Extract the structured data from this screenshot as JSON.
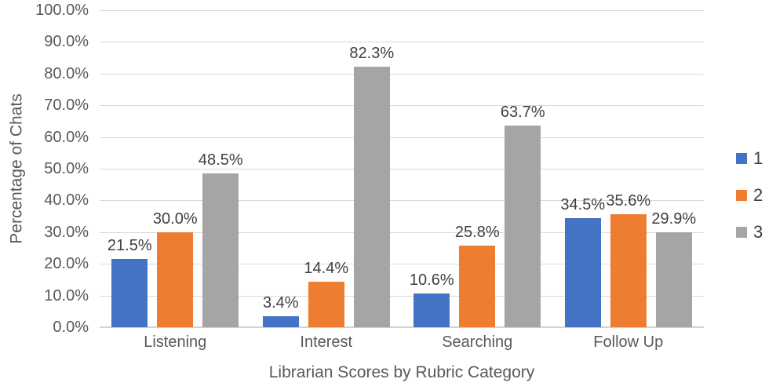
{
  "chart_data": {
    "type": "bar",
    "title": "",
    "xlabel": "Librarian Scores by Rubric Category",
    "ylabel": "Percentage of Chats",
    "categories": [
      "Listening",
      "Interest",
      "Searching",
      "Follow Up"
    ],
    "series": [
      {
        "name": "1",
        "color": "#4472c4",
        "values": [
          21.5,
          3.4,
          10.6,
          34.5
        ],
        "data_labels": [
          "21.5%",
          "3.4%",
          "10.6%",
          "34.5%"
        ]
      },
      {
        "name": "2",
        "color": "#ed7d31",
        "values": [
          30.0,
          14.4,
          25.8,
          35.6
        ],
        "data_labels": [
          "30.0%",
          "14.4%",
          "25.8%",
          "35.6%"
        ]
      },
      {
        "name": "3",
        "color": "#a5a5a5",
        "values": [
          48.5,
          82.3,
          63.7,
          29.9
        ],
        "data_labels": [
          "48.5%",
          "82.3%",
          "63.7%",
          "29.9%"
        ]
      }
    ],
    "ylim": [
      0,
      100
    ],
    "yticks": [
      {
        "value": 0,
        "label": "0.0%"
      },
      {
        "value": 10,
        "label": "10.0%"
      },
      {
        "value": 20,
        "label": "20.0%"
      },
      {
        "value": 30,
        "label": "30.0%"
      },
      {
        "value": 40,
        "label": "40.0%"
      },
      {
        "value": 50,
        "label": "50.0%"
      },
      {
        "value": 60,
        "label": "60.0%"
      },
      {
        "value": 70,
        "label": "70.0%"
      },
      {
        "value": 80,
        "label": "80.0%"
      },
      {
        "value": 90,
        "label": "90.0%"
      },
      {
        "value": 100,
        "label": "100.0%"
      }
    ],
    "grid": true,
    "legend_position": "right",
    "colors": {
      "gridline": "#d9d9d9",
      "axis_line": "#d2d2d2",
      "tick_text": "#595959",
      "data_label_text": "#404040",
      "background": "#ffffff"
    }
  }
}
